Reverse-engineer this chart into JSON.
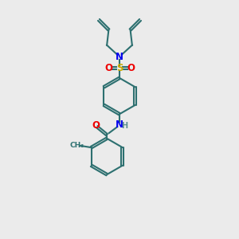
{
  "bg_color": "#ebebeb",
  "bond_color": "#2d7070",
  "N_color": "#0000ee",
  "S_color": "#ccaa00",
  "O_color": "#ee0000",
  "H_color": "#5b9090",
  "lw": 1.5,
  "dbo": 0.06,
  "xlim": [
    0,
    10
  ],
  "ylim": [
    0,
    13
  ]
}
